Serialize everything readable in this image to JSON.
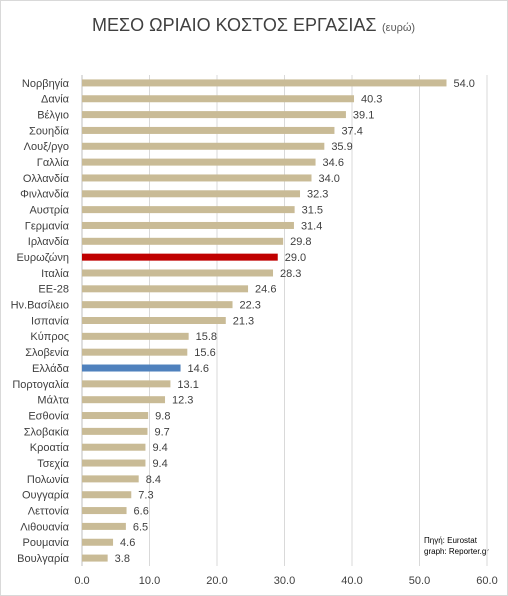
{
  "chart_data": {
    "type": "hbar",
    "title": "ΜΕΣΟ ΩΡΙΑΙΟ ΚΟΣΤΟΣ ΕΡΓΑΣΙΑΣ",
    "subtitle": "(ευρώ)",
    "source": "Πηγή: Eurostat",
    "credit": "graph: Reporter.gr",
    "categories": [
      "Νορβηγία",
      "Δανία",
      "Βέλγιο",
      "Σουηδία",
      "Λουξ/ργο",
      "Γαλλία",
      "Ολλανδία",
      "Φινλανδία",
      "Αυστρία",
      "Γερμανία",
      "Ιρλανδία",
      "Ευρωζώνη",
      "Ιταλία",
      "ΕΕ-28",
      "Ην.Βασίλειο",
      "Ισπανία",
      "Κύπρος",
      "Σλοβενία",
      "Ελλάδα",
      "Πορτογαλία",
      "Μάλτα",
      "Εσθονία",
      "Σλοβακία",
      "Κροατία",
      "Τσεχία",
      "Πολωνία",
      "Ουγγαρία",
      "Λεττονία",
      "Λιθουανία",
      "Ρουμανία",
      "Βουλγαρία"
    ],
    "values": [
      54.0,
      40.3,
      39.1,
      37.4,
      35.9,
      34.6,
      34.0,
      32.3,
      31.5,
      31.4,
      29.8,
      29.0,
      28.3,
      24.6,
      22.3,
      21.3,
      15.8,
      15.6,
      14.6,
      13.1,
      12.3,
      9.8,
      9.7,
      9.4,
      9.4,
      8.4,
      7.3,
      6.6,
      6.5,
      4.6,
      3.8
    ],
    "value_labels": [
      "54.0",
      "40.3",
      "39.1",
      "37.4",
      "35.9",
      "34.6",
      "34.0",
      "32.3",
      "31.5",
      "31.4",
      "29.8",
      "29.0",
      "28.3",
      "24.6",
      "22.3",
      "21.3",
      "15.8",
      "15.6",
      "14.6",
      "13.1",
      "12.3",
      "9.8",
      "9.7",
      "9.4",
      "9.4",
      "8.4",
      "7.3",
      "6.6",
      "6.5",
      "4.6",
      "3.8"
    ],
    "colors": [
      "#c9bb96",
      "#c9bb96",
      "#c9bb96",
      "#c9bb96",
      "#c9bb96",
      "#c9bb96",
      "#c9bb96",
      "#c9bb96",
      "#c9bb96",
      "#c9bb96",
      "#c9bb96",
      "#c00000",
      "#c9bb96",
      "#c9bb96",
      "#c9bb96",
      "#c9bb96",
      "#c9bb96",
      "#c9bb96",
      "#4f81bd",
      "#c9bb96",
      "#c9bb96",
      "#c9bb96",
      "#c9bb96",
      "#c9bb96",
      "#c9bb96",
      "#c9bb96",
      "#c9bb96",
      "#c9bb96",
      "#c9bb96",
      "#c9bb96",
      "#c9bb96"
    ],
    "xlim": [
      0,
      60
    ],
    "xticks": [
      {
        "value": 0,
        "label": "0.0"
      },
      {
        "value": 10,
        "label": "10.0"
      },
      {
        "value": 20,
        "label": "20.0"
      },
      {
        "value": 30,
        "label": "30.0"
      },
      {
        "value": 40,
        "label": "40.0"
      },
      {
        "value": 50,
        "label": "50.0"
      },
      {
        "value": 60,
        "label": "60.0"
      }
    ],
    "grid": true
  }
}
